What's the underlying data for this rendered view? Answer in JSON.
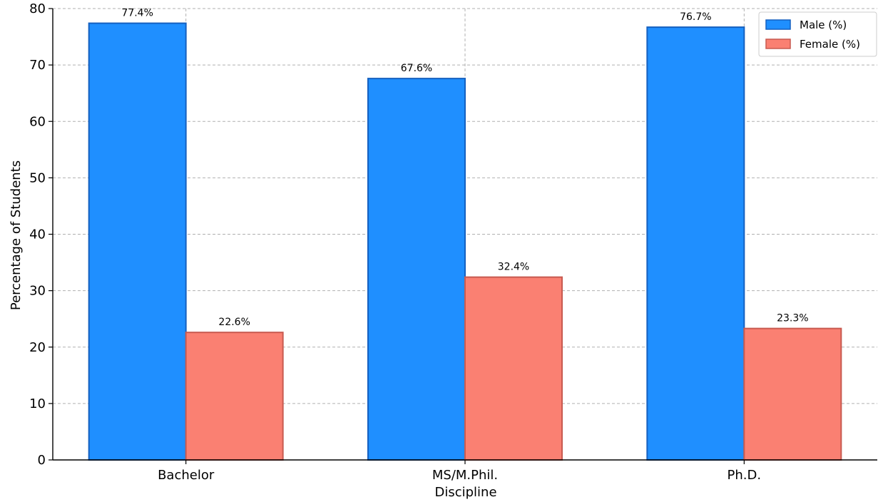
{
  "chart_data": {
    "type": "bar",
    "categories": [
      "Bachelor",
      "MS/M.Phil.",
      "Ph.D."
    ],
    "series": [
      {
        "name": "Male (%)",
        "values": [
          77.4,
          67.6,
          76.7
        ],
        "labels": [
          "77.4%",
          "67.6%",
          "76.7%"
        ],
        "color": "#1f8fff",
        "edge": "#1560c0"
      },
      {
        "name": "Female (%)",
        "values": [
          22.6,
          32.4,
          23.3
        ],
        "labels": [
          "22.6%",
          "32.4%",
          "23.3%"
        ],
        "color": "#fa8072",
        "edge": "#c85a50"
      }
    ],
    "xlabel": "Discipline",
    "ylabel": "Percentage of Students",
    "ylim": [
      0,
      80
    ],
    "yticks": [
      0,
      10,
      20,
      30,
      40,
      50,
      60,
      70,
      80
    ],
    "grid": true,
    "legend": "top-right"
  }
}
